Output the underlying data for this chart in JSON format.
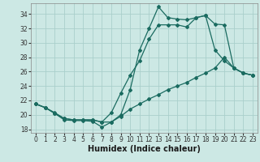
{
  "xlabel": "Humidex (Indice chaleur)",
  "bg_color": "#cce8e4",
  "grid_color": "#aacfcb",
  "line_color": "#1a6b60",
  "xlim": [
    -0.5,
    23.5
  ],
  "ylim": [
    17.5,
    35.5
  ],
  "xticks": [
    0,
    1,
    2,
    3,
    4,
    5,
    6,
    7,
    8,
    9,
    10,
    11,
    12,
    13,
    14,
    15,
    16,
    17,
    18,
    19,
    20,
    21,
    22,
    23
  ],
  "yticks": [
    18,
    20,
    22,
    24,
    26,
    28,
    30,
    32,
    34
  ],
  "line1_x": [
    0,
    1,
    2,
    3,
    4,
    5,
    6,
    7,
    8,
    9,
    10,
    11,
    12,
    13,
    14,
    15,
    16,
    17,
    18,
    19,
    20,
    21,
    22,
    23
  ],
  "line1_y": [
    21.5,
    21.0,
    20.2,
    19.3,
    19.2,
    19.2,
    19.1,
    18.3,
    19.0,
    20.0,
    23.5,
    29.0,
    32.0,
    35.0,
    33.5,
    33.3,
    33.2,
    33.5,
    33.8,
    32.6,
    32.5,
    26.5,
    25.8,
    25.5
  ],
  "line2_x": [
    0,
    1,
    2,
    3,
    4,
    5,
    6,
    7,
    8,
    9,
    10,
    11,
    12,
    13,
    14,
    15,
    16,
    17,
    18,
    19,
    20,
    21,
    22,
    23
  ],
  "line2_y": [
    21.5,
    21.0,
    20.2,
    19.5,
    19.3,
    19.3,
    19.3,
    19.0,
    20.3,
    23.0,
    25.5,
    27.5,
    30.5,
    32.5,
    32.5,
    32.5,
    32.2,
    33.5,
    33.8,
    29.0,
    27.5,
    26.5,
    25.8,
    25.5
  ],
  "line3_x": [
    0,
    1,
    2,
    3,
    4,
    5,
    6,
    7,
    8,
    9,
    10,
    11,
    12,
    13,
    14,
    15,
    16,
    17,
    18,
    19,
    20,
    21,
    22,
    23
  ],
  "line3_y": [
    21.5,
    21.0,
    20.3,
    19.5,
    19.3,
    19.3,
    19.3,
    19.0,
    19.0,
    19.8,
    20.8,
    21.5,
    22.2,
    22.8,
    23.5,
    24.0,
    24.5,
    25.2,
    25.8,
    26.5,
    28.0,
    26.5,
    25.8,
    25.5
  ],
  "marker": "D",
  "markersize": 2.0,
  "linewidth": 0.9,
  "xlabel_fontsize": 7,
  "tick_fontsize": 5.5
}
